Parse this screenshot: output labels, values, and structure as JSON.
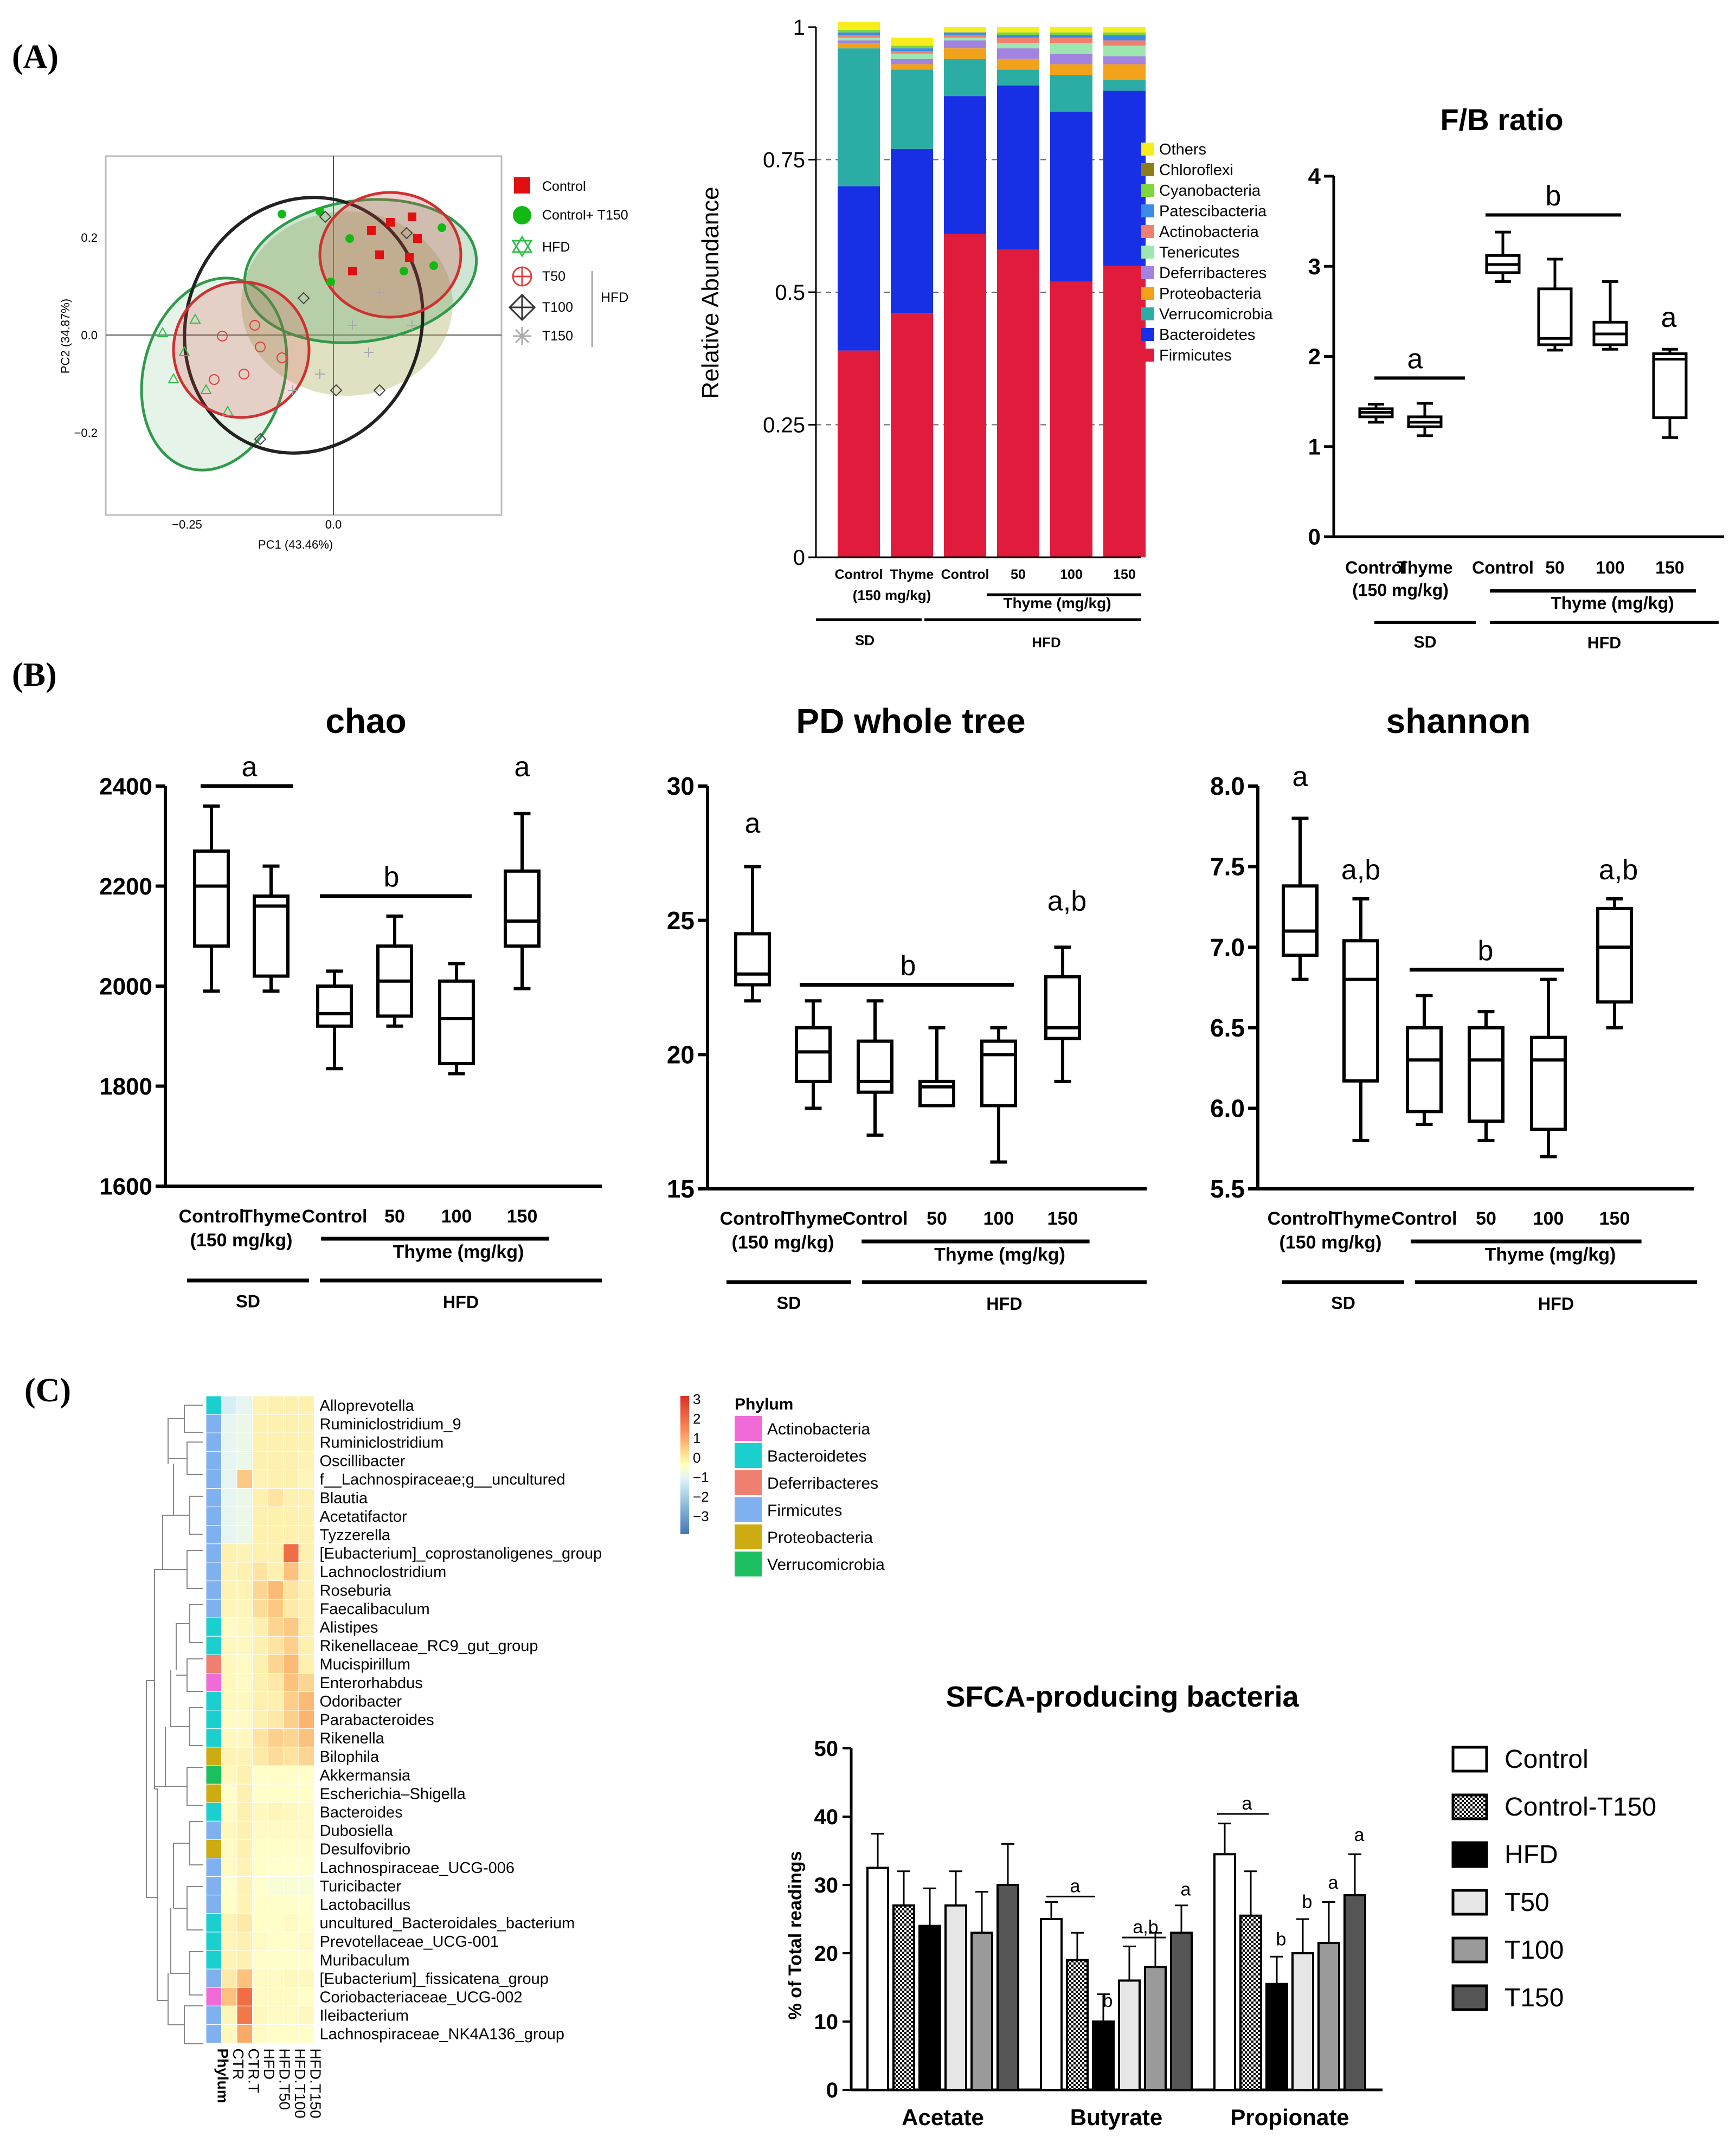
{
  "panel_labels": {
    "a": "(A)",
    "b": "(B)",
    "c": "(C)"
  },
  "colors": {
    "Others": "#f5ee1c",
    "Chloroflexi": "#8b7d1a",
    "Cyanobacteria": "#7fd63a",
    "Patescibacteria": "#3b8ae6",
    "Actinobacteria": "#ef8070",
    "Tenericutes": "#9ee6b0",
    "Deferribacteres": "#a283e0",
    "Proteobacteria": "#f2a21a",
    "Verrucomicrobia": "#2bada6",
    "Bacteroidetes": "#1730e6",
    "Firmicutes": "#e01b3c"
  },
  "common": {
    "groups": [
      "Control",
      "Thyme",
      "Control",
      "50",
      "100",
      "150"
    ],
    "sub": "(150 mg/kg)",
    "thyme_label": "Thyme (mg/kg)",
    "thyme_label_small": "Thyme (mg/kg)",
    "sd": "SD",
    "hfd": "HFD"
  },
  "chart_data": [
    {
      "id": "pcoa",
      "type": "scatter",
      "xlabel": "PC1 (43.46%)",
      "ylabel": "PC2 (34.87%)",
      "xticks": [
        "−0.25",
        "0.0"
      ],
      "yticks": [
        "0.2",
        "0.0",
        "−0.2"
      ],
      "legend": [
        "Control",
        "Control+ T150",
        "HFD",
        "T50",
        "T100",
        "T150"
      ],
      "legend_group": "HFD"
    },
    {
      "id": "stacked",
      "type": "bar",
      "ylabel": "Relative Abundance",
      "yticks": [
        "0",
        "0.25",
        "0.5",
        "0.75",
        "1"
      ],
      "ylim": [
        0,
        1
      ],
      "legend": [
        "Others",
        "Chloroflexi",
        "Cyanobacteria",
        "Patescibacteria",
        "Actinobacteria",
        "Tenericutes",
        "Deferribacteres",
        "Proteobacteria",
        "Verrucomicrobia",
        "Bacteroidetes",
        "Firmicutes"
      ],
      "series_order": [
        "Firmicutes",
        "Bacteroidetes",
        "Verrucomicrobia",
        "Proteobacteria",
        "Deferribacteres",
        "Tenericutes",
        "Actinobacteria",
        "Patescibacteria",
        "Cyanobacteria",
        "Chloroflexi",
        "Others"
      ],
      "values": [
        [
          0.39,
          0.31,
          0.26,
          0.01,
          0.005,
          0.005,
          0.005,
          0.005,
          0.005,
          0.0,
          0.015
        ],
        [
          0.46,
          0.31,
          0.15,
          0.01,
          0.01,
          0.01,
          0.005,
          0.005,
          0.005,
          0.0,
          0.015
        ],
        [
          0.61,
          0.26,
          0.07,
          0.02,
          0.015,
          0.005,
          0.005,
          0.005,
          0.0,
          0.0,
          0.01
        ],
        [
          0.58,
          0.31,
          0.03,
          0.02,
          0.02,
          0.01,
          0.01,
          0.005,
          0.005,
          0.0,
          0.01
        ],
        [
          0.52,
          0.32,
          0.07,
          0.02,
          0.02,
          0.02,
          0.01,
          0.005,
          0.005,
          0.0,
          0.01
        ],
        [
          0.55,
          0.33,
          0.02,
          0.03,
          0.015,
          0.02,
          0.01,
          0.01,
          0.005,
          0.0,
          0.01
        ]
      ]
    },
    {
      "id": "fb",
      "type": "box",
      "title": "F/B ratio",
      "yticks": [
        "0",
        "1",
        "2",
        "3",
        "4"
      ],
      "ylim": [
        0,
        4
      ],
      "boxes": [
        {
          "min": 1.27,
          "q1": 1.33,
          "med": 1.38,
          "q3": 1.42,
          "max": 1.47
        },
        {
          "min": 1.12,
          "q1": 1.22,
          "med": 1.27,
          "q3": 1.33,
          "max": 1.48
        },
        {
          "min": 2.83,
          "q1": 2.93,
          "med": 3.02,
          "q3": 3.12,
          "max": 3.38
        },
        {
          "min": 2.07,
          "q1": 2.13,
          "med": 2.2,
          "q3": 2.75,
          "max": 3.08
        },
        {
          "min": 2.08,
          "q1": 2.13,
          "med": 2.25,
          "q3": 2.38,
          "max": 2.83
        },
        {
          "min": 1.1,
          "q1": 1.32,
          "med": 1.97,
          "q3": 2.03,
          "max": 2.08
        }
      ],
      "sig": [
        "a",
        "b",
        "a"
      ]
    },
    {
      "id": "chao",
      "type": "box",
      "title": "chao",
      "yticks": [
        "1600",
        "1800",
        "2000",
        "2200",
        "2400"
      ],
      "ylim": [
        1600,
        2400
      ],
      "boxes": [
        {
          "min": 1990,
          "q1": 2080,
          "med": 2200,
          "q3": 2270,
          "max": 2360
        },
        {
          "min": 1990,
          "q1": 2020,
          "med": 2160,
          "q3": 2180,
          "max": 2240
        },
        {
          "min": 1835,
          "q1": 1920,
          "med": 1945,
          "q3": 2000,
          "max": 2030
        },
        {
          "min": 1920,
          "q1": 1940,
          "med": 2010,
          "q3": 2080,
          "max": 2140
        },
        {
          "min": 1825,
          "q1": 1845,
          "med": 1935,
          "q3": 2010,
          "max": 2045
        },
        {
          "min": 1995,
          "q1": 2080,
          "med": 2130,
          "q3": 2230,
          "max": 2345
        }
      ],
      "sig": [
        "a",
        "b",
        "a"
      ]
    },
    {
      "id": "pd",
      "type": "box",
      "title": "PD whole tree",
      "yticks": [
        "15",
        "20",
        "25",
        "30"
      ],
      "ylim": [
        15,
        30
      ],
      "boxes": [
        {
          "min": 22.0,
          "q1": 22.6,
          "med": 23.0,
          "q3": 24.5,
          "max": 27.0
        },
        {
          "min": 18.0,
          "q1": 19.0,
          "med": 20.1,
          "q3": 21.0,
          "max": 22.0
        },
        {
          "min": 17.0,
          "q1": 18.6,
          "med": 19.0,
          "q3": 20.5,
          "max": 22.0
        },
        {
          "min": 18.1,
          "q1": 18.1,
          "med": 18.8,
          "q3": 19.0,
          "max": 21.0
        },
        {
          "min": 16.0,
          "q1": 18.1,
          "med": 20.0,
          "q3": 20.5,
          "max": 21.0
        },
        {
          "min": 19.0,
          "q1": 20.6,
          "med": 21.0,
          "q3": 22.9,
          "max": 24.0
        }
      ],
      "sig": [
        "a",
        "b",
        "a,b"
      ]
    },
    {
      "id": "shannon",
      "type": "box",
      "title": "shannon",
      "yticks": [
        "5.5",
        "6.0",
        "6.5",
        "7.0",
        "7.5",
        "8.0"
      ],
      "ylim": [
        5.5,
        8.0
      ],
      "boxes": [
        {
          "min": 6.8,
          "q1": 6.95,
          "med": 7.1,
          "q3": 7.38,
          "max": 7.8
        },
        {
          "min": 5.8,
          "q1": 6.17,
          "med": 6.8,
          "q3": 7.04,
          "max": 7.3
        },
        {
          "min": 5.9,
          "q1": 5.98,
          "med": 6.3,
          "q3": 6.5,
          "max": 6.7
        },
        {
          "min": 5.8,
          "q1": 5.92,
          "med": 6.3,
          "q3": 6.5,
          "max": 6.6
        },
        {
          "min": 5.7,
          "q1": 5.87,
          "med": 6.3,
          "q3": 6.44,
          "max": 6.8
        },
        {
          "min": 6.5,
          "q1": 6.66,
          "med": 7.0,
          "q3": 7.24,
          "max": 7.3
        }
      ],
      "sig": [
        "a",
        "a,b",
        "b",
        "a,b"
      ]
    },
    {
      "id": "heatmap",
      "type": "heatmap",
      "columns": [
        "Phylum",
        "CTR",
        "CTR.T",
        "HFD",
        "HFD.T50",
        "HFD.T100",
        "HFD.T150"
      ],
      "rows": [
        "Alloprevotella",
        "Ruminiclostridium_9",
        "Ruminiclostridium",
        "Oscillibacter",
        "f__Lachnospiraceae;g__uncultured",
        "Blautia",
        "Acetatifactor",
        "Tyzzerella",
        "[Eubacterium]_coprostanoligenes_group",
        "Lachnoclostridium",
        "Roseburia",
        "Faecalibaculum",
        "Alistipes",
        "Rikenellaceae_RC9_gut_group",
        "Mucispirillum",
        "Enterorhabdus",
        "Odoribacter",
        "Parabacteroides",
        "Rikenella",
        "Bilophila",
        "Akkermansia",
        "Escherichia–Shigella",
        "Bacteroides",
        "Dubosiella",
        "Desulfovibrio",
        "Lachnospiraceae_UCG-006",
        "Turicibacter",
        "Lactobacillus",
        "uncultured_Bacteroidales_bacterium",
        "Prevotellaceae_UCG-001",
        "Muribaculum",
        "[Eubacterium]_fissicatena_group",
        "Coriobacteriaceae_UCG-002",
        "Ileibacterium",
        "Lachnospiraceae_NK4A136_group"
      ],
      "phylum": [
        "Bacteroidetes",
        "Firmicutes",
        "Firmicutes",
        "Firmicutes",
        "Firmicutes",
        "Firmicutes",
        "Firmicutes",
        "Firmicutes",
        "Firmicutes",
        "Firmicutes",
        "Firmicutes",
        "Firmicutes",
        "Bacteroidetes",
        "Bacteroidetes",
        "Deferribacteres",
        "Actinobacteria",
        "Bacteroidetes",
        "Bacteroidetes",
        "Bacteroidetes",
        "Proteobacteria",
        "Verrucomicrobia",
        "Proteobacteria",
        "Bacteroidetes",
        "Firmicutes",
        "Proteobacteria",
        "Firmicutes",
        "Firmicutes",
        "Firmicutes",
        "Bacteroidetes",
        "Bacteroidetes",
        "Bacteroidetes",
        "Firmicutes",
        "Actinobacteria",
        "Firmicutes",
        "Firmicutes"
      ],
      "values": [
        [
          -0.6,
          -0.4,
          0.5,
          0.6,
          0.6,
          0.6
        ],
        [
          -0.4,
          -0.3,
          0.6,
          0.6,
          0.6,
          0.6
        ],
        [
          -0.4,
          -0.3,
          0.6,
          0.6,
          0.6,
          0.6
        ],
        [
          -0.4,
          -0.3,
          0.6,
          0.6,
          0.6,
          0.5
        ],
        [
          -0.4,
          1.2,
          0.5,
          0.6,
          0.6,
          0.4
        ],
        [
          -0.4,
          -0.3,
          0.6,
          0.8,
          0.6,
          0.6
        ],
        [
          -0.4,
          -0.3,
          0.6,
          0.6,
          0.6,
          0.6
        ],
        [
          -0.4,
          -0.3,
          0.6,
          0.6,
          0.6,
          0.6
        ],
        [
          0.6,
          0.5,
          0.6,
          0.6,
          2.2,
          0.6
        ],
        [
          0.5,
          0.6,
          0.8,
          0.6,
          1.3,
          0.6
        ],
        [
          0.5,
          0.5,
          1.0,
          1.4,
          0.8,
          0.6
        ],
        [
          0.4,
          0.4,
          0.9,
          1.2,
          0.7,
          0.6
        ],
        [
          0.2,
          0.3,
          0.6,
          1.0,
          1.2,
          0.6
        ],
        [
          0.3,
          0.3,
          0.6,
          0.8,
          1.1,
          0.6
        ],
        [
          0.3,
          0.2,
          0.6,
          1.0,
          1.4,
          0.6
        ],
        [
          0.3,
          0.2,
          0.6,
          0.7,
          1.3,
          1.0
        ],
        [
          0.3,
          0.3,
          0.6,
          0.6,
          1.1,
          1.4
        ],
        [
          0.2,
          0.2,
          0.6,
          0.7,
          1.1,
          1.5
        ],
        [
          0.3,
          0.3,
          0.8,
          1.1,
          1.0,
          1.3
        ],
        [
          0.5,
          0.5,
          0.7,
          0.9,
          0.8,
          1.0
        ],
        [
          0.3,
          0.6,
          0.1,
          0.1,
          0.1,
          0.1
        ],
        [
          0.1,
          0.6,
          0.1,
          0.1,
          0.1,
          0.1
        ],
        [
          0.2,
          0.6,
          0.3,
          0.4,
          0.3,
          0.2
        ],
        [
          0.3,
          0.6,
          0.2,
          0.2,
          0.2,
          0.2
        ],
        [
          0.2,
          0.6,
          0.1,
          0.1,
          0.1,
          0.1
        ],
        [
          0.2,
          0.5,
          0.1,
          0.0,
          0.0,
          0.0
        ],
        [
          0.0,
          0.5,
          0.0,
          -0.1,
          -0.1,
          -0.1
        ],
        [
          0.1,
          0.5,
          0.1,
          0.1,
          0.1,
          0.0
        ],
        [
          0.5,
          0.7,
          0.1,
          0.1,
          0.2,
          0.1
        ],
        [
          0.4,
          0.6,
          0.2,
          0.1,
          0.1,
          0.2
        ],
        [
          0.5,
          0.6,
          0.1,
          0.1,
          0.1,
          0.1
        ],
        [
          0.7,
          1.3,
          0.2,
          0.2,
          0.3,
          0.3
        ],
        [
          1.3,
          2.2,
          0.2,
          0.2,
          0.2,
          0.1
        ],
        [
          0.4,
          2.1,
          0.3,
          0.2,
          0.2,
          0.3
        ],
        [
          0.3,
          1.6,
          0.2,
          0.1,
          0.1,
          0.1
        ]
      ],
      "scale_ticks": [
        "3",
        "2",
        "1",
        "0",
        "−1",
        "−2",
        "−3"
      ],
      "legend_title": "Phylum",
      "legend": [
        "Actinobacteria",
        "Bacteroidetes",
        "Deferribacteres",
        "Firmicutes",
        "Proteobacteria",
        "Verrucomicrobia"
      ]
    },
    {
      "id": "scfa",
      "type": "bar",
      "title": "SFCA-producing bacteria",
      "ylabel": "% of Total readings",
      "yticks": [
        "0",
        "10",
        "20",
        "30",
        "40",
        "50"
      ],
      "ylim": [
        0,
        50
      ],
      "categories": [
        "Acetate",
        "Butyrate",
        "Propionate"
      ],
      "series": [
        {
          "name": "Control",
          "values": [
            32.5,
            25.0,
            34.5
          ],
          "err": [
            5.0,
            2.5,
            4.5
          ]
        },
        {
          "name": "Control-T150",
          "values": [
            27.0,
            19.0,
            25.5
          ],
          "err": [
            5.0,
            4.0,
            6.5
          ]
        },
        {
          "name": "HFD",
          "values": [
            24.0,
            10.0,
            15.5
          ],
          "err": [
            5.5,
            4.0,
            4.0
          ]
        },
        {
          "name": "T50",
          "values": [
            27.0,
            16.0,
            20.0
          ],
          "err": [
            5.0,
            5.0,
            5.0
          ]
        },
        {
          "name": "T100",
          "values": [
            23.0,
            18.0,
            21.5
          ],
          "err": [
            6.0,
            5.0,
            6.0
          ]
        },
        {
          "name": "T150",
          "values": [
            30.0,
            23.0,
            28.5
          ],
          "err": [
            6.0,
            4.0,
            6.0
          ]
        }
      ],
      "sig_labels": [
        "a",
        "b",
        "a,b",
        "a",
        "a",
        "b",
        "b",
        "a",
        "a"
      ]
    }
  ]
}
